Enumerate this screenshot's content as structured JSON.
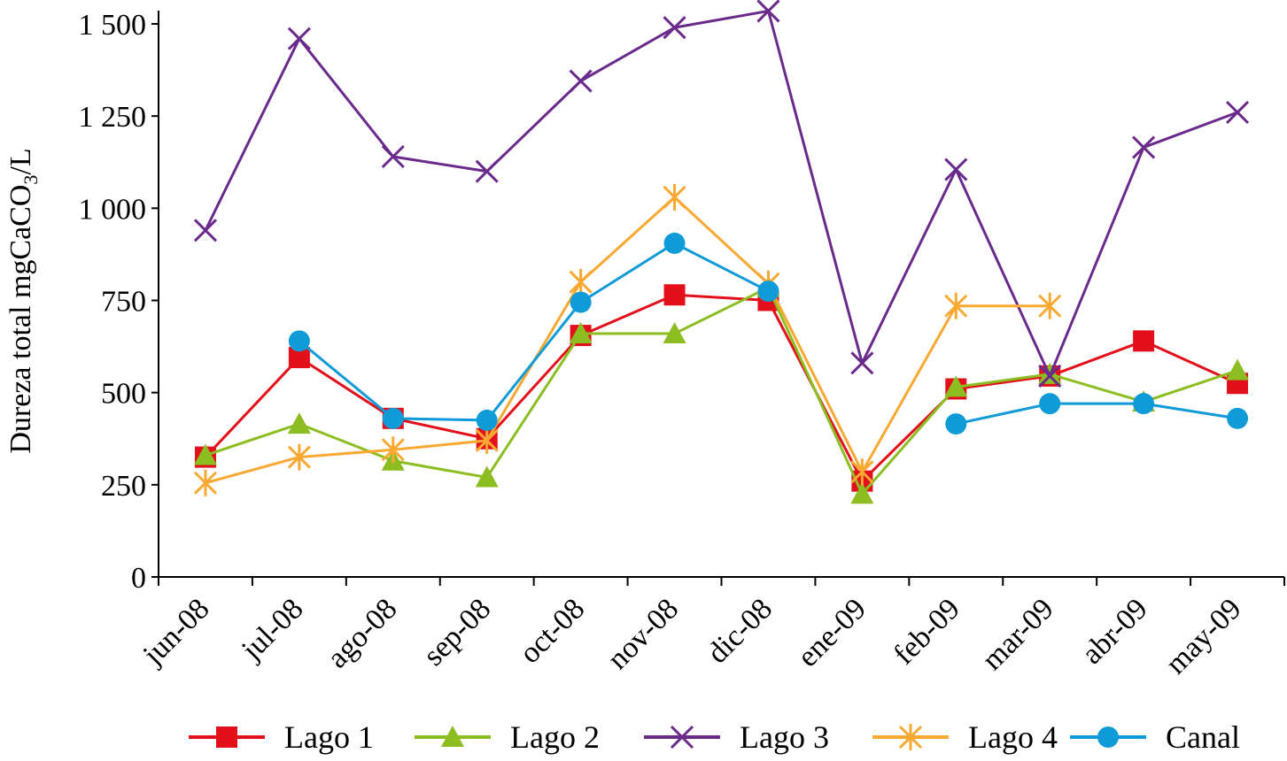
{
  "chart_data": {
    "type": "line",
    "title": "",
    "xlabel": "",
    "ylabel": "Dureza total mgCaCO3/L",
    "ylabel_parts": {
      "main": "Dureza total mgCaCO",
      "sub": "3",
      "tail": "/L"
    },
    "ylim": [
      0,
      1500
    ],
    "yticks": [
      0,
      250,
      500,
      750,
      1000,
      1250,
      1500
    ],
    "ytick_labels": [
      "0",
      "250",
      "500",
      "750",
      "1 000",
      "1 250",
      "1 500"
    ],
    "categories": [
      "jun-08",
      "jul-08",
      "ago-08",
      "sep-08",
      "oct-08",
      "nov-08",
      "dic-08",
      "ene-09",
      "feb-09",
      "mar-09",
      "abr-09",
      "may-09"
    ],
    "legend_position": "bottom",
    "series": [
      {
        "name": "Lago 1",
        "color": "#e3101b",
        "marker": "square",
        "values": [
          325,
          595,
          430,
          375,
          655,
          765,
          750,
          260,
          510,
          545,
          640,
          525
        ]
      },
      {
        "name": "Lago 2",
        "color": "#8cbe22",
        "marker": "triangle",
        "values": [
          330,
          415,
          315,
          270,
          660,
          660,
          785,
          225,
          515,
          550,
          475,
          560
        ]
      },
      {
        "name": "Lago 3",
        "color": "#6a2a8c",
        "marker": "x",
        "values": [
          940,
          1460,
          1140,
          1100,
          1345,
          1490,
          1535,
          580,
          1105,
          545,
          1165,
          1260
        ]
      },
      {
        "name": "Lago 4",
        "color": "#f9a832",
        "marker": "star",
        "values": [
          255,
          325,
          345,
          370,
          800,
          1030,
          795,
          285,
          735,
          null,
          null,
          null
        ],
        "extra_points": [
          {
            "category": "mar-09",
            "value": 735,
            "connected_to_previous": true
          }
        ]
      },
      {
        "name": "Canal",
        "color": "#0f9ad8",
        "marker": "circle",
        "values": [
          null,
          640,
          430,
          425,
          745,
          905,
          775,
          null,
          415,
          470,
          470,
          430
        ]
      }
    ]
  }
}
